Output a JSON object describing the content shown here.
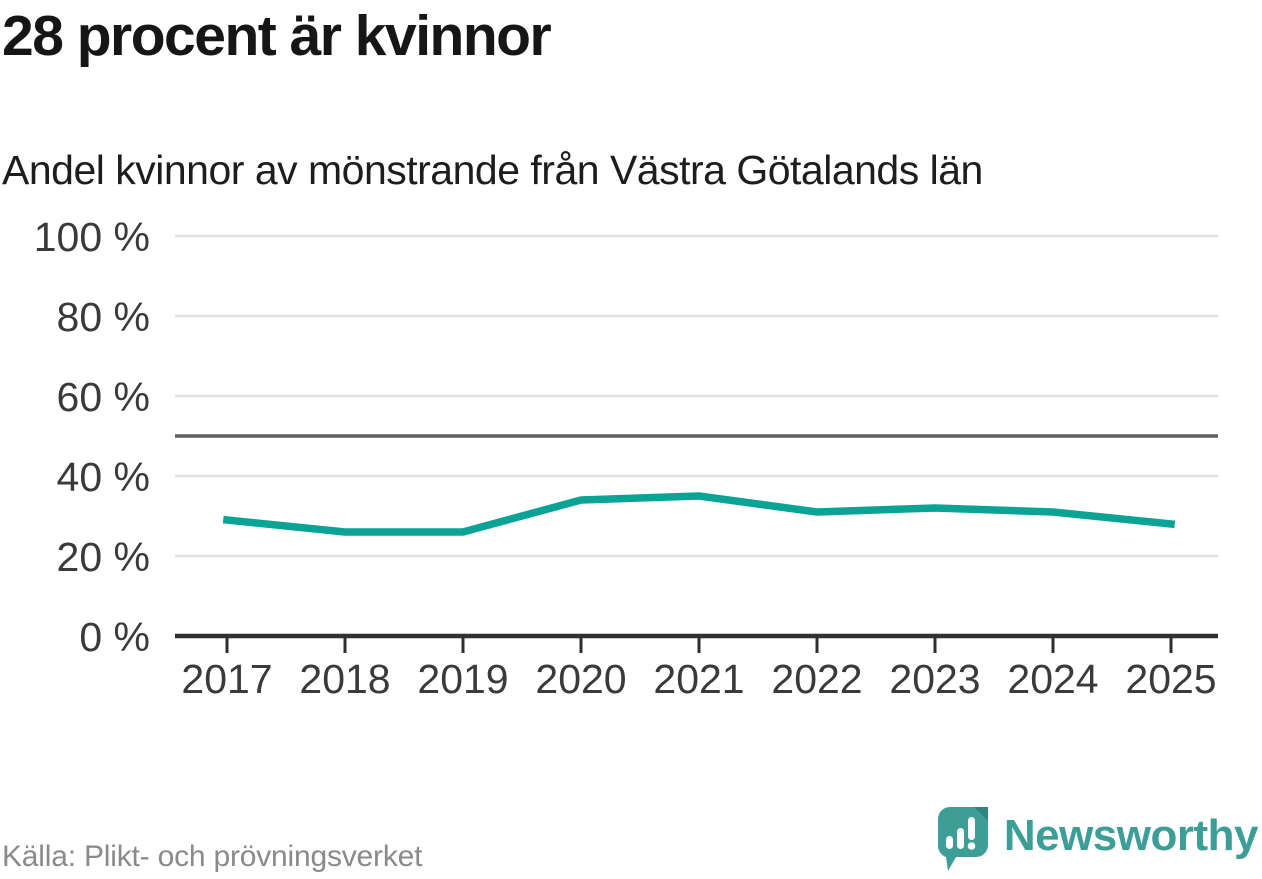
{
  "header": {
    "title": "28 procent är kvinnor",
    "subtitle": "Andel kvinnor av mönstrande från Västra Götalands län"
  },
  "footer": {
    "source": "Källa: Plikt- och prövningsverket",
    "brand": "Newsworthy"
  },
  "colors": {
    "line": "#0aa396",
    "grid": "#e1e1e1",
    "reference_line": "#5f5f5f",
    "axis": "#303030",
    "axis_text": "#3a3a3a",
    "brand_teal": "#3d9e98",
    "brand_teal_dark": "#2d8680",
    "source_text": "#8a8a8a"
  },
  "chart_data": {
    "type": "line",
    "title": "28 procent är kvinnor",
    "subtitle": "Andel kvinnor av mönstrande från Västra Götalands län",
    "x": [
      2017,
      2018,
      2019,
      2020,
      2021,
      2022,
      2023,
      2024,
      2025
    ],
    "series": [
      {
        "name": "Andel kvinnor av mönstrande",
        "values": [
          29,
          26,
          26,
          34,
          35,
          31,
          32,
          31,
          28
        ]
      }
    ],
    "unit": "%",
    "ylim": [
      0,
      100
    ],
    "yticks": [
      0,
      20,
      40,
      60,
      80,
      100
    ],
    "ytick_labels": [
      "0 %",
      "20 %",
      "40 %",
      "60 %",
      "80 %",
      "100 %"
    ],
    "xtick_labels": [
      "2017",
      "2018",
      "2019",
      "2020",
      "2021",
      "2022",
      "2023",
      "2024",
      "2025"
    ],
    "reference_line": 50,
    "grid": "horizontal",
    "legend": "none"
  }
}
